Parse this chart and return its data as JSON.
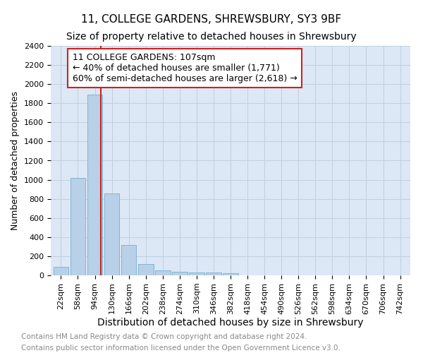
{
  "title": "11, COLLEGE GARDENS, SHREWSBURY, SY3 9BF",
  "subtitle": "Size of property relative to detached houses in Shrewsbury",
  "xlabel": "Distribution of detached houses by size in Shrewsbury",
  "ylabel": "Number of detached properties",
  "footnote1": "Contains HM Land Registry data © Crown copyright and database right 2024.",
  "footnote2": "Contains public sector information licensed under the Open Government Licence v3.0.",
  "categories": [
    "22sqm",
    "58sqm",
    "94sqm",
    "130sqm",
    "166sqm",
    "202sqm",
    "238sqm",
    "274sqm",
    "310sqm",
    "346sqm",
    "382sqm",
    "418sqm",
    "454sqm",
    "490sqm",
    "526sqm",
    "562sqm",
    "598sqm",
    "634sqm",
    "670sqm",
    "706sqm",
    "742sqm"
  ],
  "values": [
    90,
    1020,
    1890,
    855,
    320,
    120,
    50,
    40,
    30,
    30,
    20,
    0,
    0,
    0,
    0,
    0,
    0,
    0,
    0,
    0,
    0
  ],
  "bar_color": "#b8d0e8",
  "bar_edgecolor": "#7aaed0",
  "ylim": [
    0,
    2400
  ],
  "yticks": [
    0,
    200,
    400,
    600,
    800,
    1000,
    1200,
    1400,
    1600,
    1800,
    2000,
    2200,
    2400
  ],
  "vline_color": "#cc2222",
  "annotation_title": "11 COLLEGE GARDENS: 107sqm",
  "annotation_line1": "← 40% of detached houses are smaller (1,771)",
  "annotation_line2": "60% of semi-detached houses are larger (2,618) →",
  "annotation_box_color": "#cc2222",
  "background_color": "#ffffff",
  "plot_bg_color": "#dce8f5",
  "grid_color": "#c0d0e0",
  "title_fontsize": 11,
  "subtitle_fontsize": 10,
  "xlabel_fontsize": 10,
  "ylabel_fontsize": 9,
  "tick_fontsize": 8,
  "annotation_fontsize": 9,
  "footnote_fontsize": 7.5
}
